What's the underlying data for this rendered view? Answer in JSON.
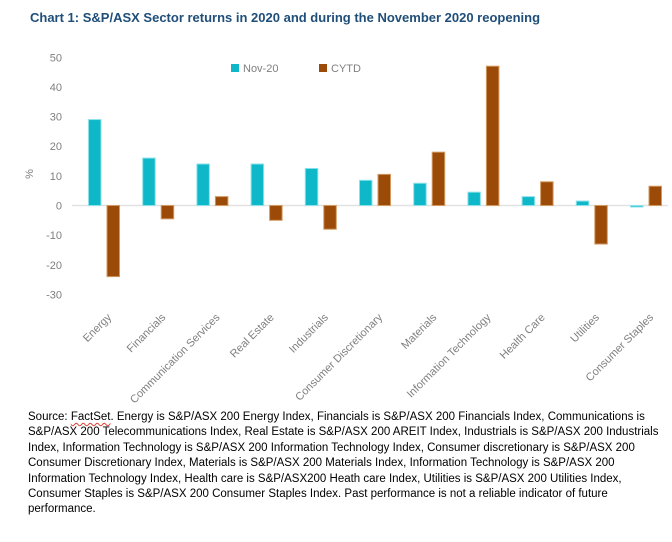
{
  "title": "Chart 1: S&P/ASX Sector returns in 2020 and during the November 2020 reopening",
  "chart_data": {
    "type": "bar",
    "title": "Chart 1: S&P/ASX Sector returns in 2020 and during the November 2020 reopening",
    "categories": [
      "Energy",
      "Financials",
      "Communication Services",
      "Real Estate",
      "Industrials",
      "Consumer Discretionary",
      "Materials",
      "Information Technology",
      "Health Care",
      "Utilities",
      "Consumer Staples"
    ],
    "series": [
      {
        "name": "Nov-20",
        "color": "#0FB8C8",
        "stroke": "#8BE2EA",
        "values": [
          29,
          16,
          14,
          14,
          12.5,
          8.5,
          7.5,
          4.5,
          3,
          1.5,
          -0.5
        ]
      },
      {
        "name": "CYTD",
        "color": "#9C4A08",
        "stroke": "#D29A62",
        "values": [
          -24,
          -4.5,
          3,
          -5,
          -8,
          10.5,
          18,
          47,
          8,
          -13,
          6.5
        ]
      }
    ],
    "xlabel": "",
    "ylabel": "%",
    "ylim": [
      -30,
      50
    ],
    "ytick_step": 10,
    "grid": false,
    "legend_position": "top-center",
    "axis_text_color": "#7F7F7F",
    "baseline_color": "#E2E2E2"
  },
  "footnote": {
    "source_prefix": "Source: ",
    "source_word": "FactSet",
    "text": ". Energy is S&P/ASX 200 Energy Index, Financials is S&P/ASX 200 Financials Index, Communications is S&P/ASX 200 Telecommunications Index, Real Estate is S&P/ASX 200 AREIT Index, Industrials is S&P/ASX 200 Industrials Index, Information Technology is S&P/ASX 200 Information Technology Index, Consumer discretionary is S&P/ASX 200 Consumer Discretionary Index, Materials is S&P/ASX 200 Materials Index, Information Technology is S&P/ASX 200 Information Technology Index, Health care is S&P/ASX200 Heath care Index, Utilities is S&P/ASX 200 Utilities Index, Consumer Staples is S&P/ASX 200 Consumer Staples Index. Past performance is not a reliable indicator of future performance."
  },
  "colors": {
    "title": "#1F4E79",
    "nov20": "#0FB8C8",
    "cytd": "#9C4A08",
    "spellcheck_underline": "#e03c31"
  }
}
